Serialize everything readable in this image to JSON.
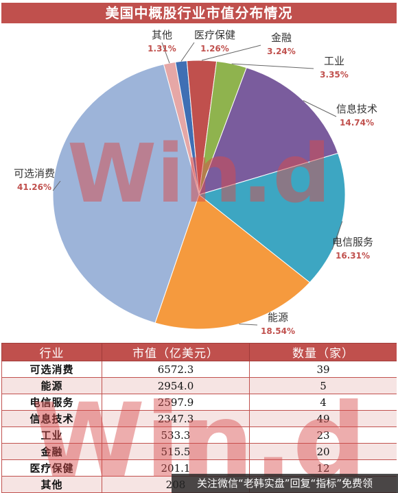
{
  "title": "美国中概股行业市值分布情况",
  "watermark": "Win.d",
  "chart_data": {
    "type": "pie",
    "title": "美国中概股行业市值分布情况",
    "slices": [
      {
        "label": "其他",
        "pct_label": "1.31%",
        "value": 1.31,
        "color": "#e6a7a6"
      },
      {
        "label": "医疗保健",
        "pct_label": "1.26%",
        "value": 1.26,
        "color": "#3f6fb4"
      },
      {
        "label": "金融",
        "pct_label": "3.24%",
        "value": 3.24,
        "color": "#c0504d"
      },
      {
        "label": "工业",
        "pct_label": "3.35%",
        "value": 3.35,
        "color": "#8fb34e"
      },
      {
        "label": "信息技术",
        "pct_label": "14.74%",
        "value": 14.74,
        "color": "#7a5c9d"
      },
      {
        "label": "电信服务",
        "pct_label": "16.31%",
        "value": 16.31,
        "color": "#3da6c2"
      },
      {
        "label": "能源",
        "pct_label": "18.54%",
        "value": 18.54,
        "color": "#f59a3e"
      },
      {
        "label": "可选消费",
        "pct_label": "41.26%",
        "value": 41.26,
        "color": "#9db4d9"
      }
    ]
  },
  "table": {
    "headers": [
      "行业",
      "市值（亿美元）",
      "数量（家）"
    ],
    "rows": [
      {
        "industry": "可选消费",
        "market_cap": "6572.3",
        "count": "39"
      },
      {
        "industry": "能源",
        "market_cap": "2954.0",
        "count": "5"
      },
      {
        "industry": "电信服务",
        "market_cap": "2597.9",
        "count": "4"
      },
      {
        "industry": "信息技术",
        "market_cap": "2347.3",
        "count": "49"
      },
      {
        "industry": "工业",
        "market_cap": "533.3",
        "count": "23"
      },
      {
        "industry": "金融",
        "market_cap": "515.5",
        "count": "20"
      },
      {
        "industry": "医疗保健",
        "market_cap": "201.1",
        "count": "12"
      },
      {
        "industry": "其他",
        "market_cap": "208",
        "count": ""
      }
    ]
  },
  "footer": "关注微信“老韩实盘”回复“指标”免费领"
}
